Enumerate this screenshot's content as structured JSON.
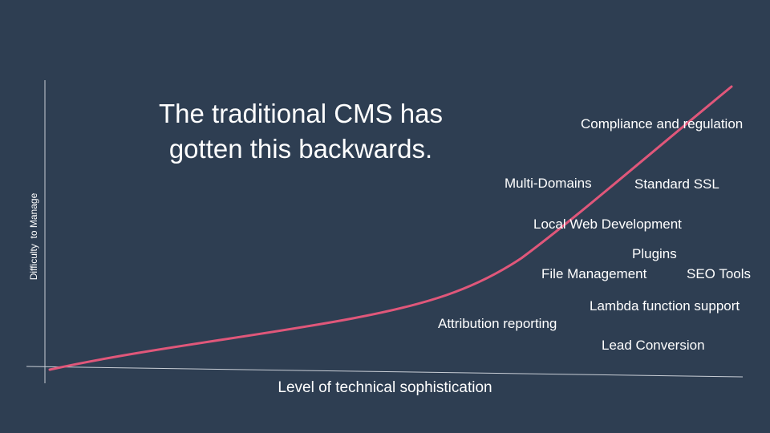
{
  "slide": {
    "title": "The traditional CMS has\ngotten this backwards.",
    "x_axis_label": "Level of technical sophistication",
    "y_axis_label": "Difficulty  to Manage",
    "features": [
      "Compliance and regulation",
      "Multi-Domains",
      "Standard SSL",
      "Local Web Development",
      "Plugins",
      "File Management",
      "SEO Tools",
      "Lambda function support",
      "Attribution reporting",
      "Lead Conversion"
    ]
  },
  "colors": {
    "background": "#2e3e52",
    "curve": "#e0577a",
    "axis": "#c9ced6",
    "text": "#ffffff"
  }
}
